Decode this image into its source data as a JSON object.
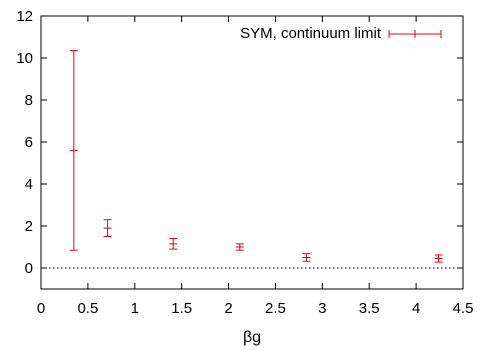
{
  "chart_data": {
    "type": "scatter",
    "xlabel": "βg",
    "ylabel": "",
    "xlim": [
      0,
      4.5
    ],
    "ylim": [
      -1,
      12
    ],
    "x_ticks": [
      "0",
      "0.5",
      "1",
      "1.5",
      "2",
      "2.5",
      "3",
      "3.5",
      "4",
      "4.5"
    ],
    "y_ticks": [
      "0",
      "2",
      "4",
      "6",
      "8",
      "10",
      "12"
    ],
    "reference_line_y": 0,
    "grid": false,
    "legend_position": "top-right",
    "series": [
      {
        "name": "SYM, continuum limit",
        "color": "#e8000b",
        "marker": "plus",
        "points": [
          {
            "x": 0.35,
            "y": 5.6,
            "ylow": 0.85,
            "yhigh": 10.35
          },
          {
            "x": 0.71,
            "y": 1.9,
            "ylow": 1.5,
            "yhigh": 2.3
          },
          {
            "x": 1.41,
            "y": 1.15,
            "ylow": 0.9,
            "yhigh": 1.4
          },
          {
            "x": 2.12,
            "y": 1.0,
            "ylow": 0.85,
            "yhigh": 1.15
          },
          {
            "x": 2.83,
            "y": 0.5,
            "ylow": 0.32,
            "yhigh": 0.68
          },
          {
            "x": 4.24,
            "y": 0.45,
            "ylow": 0.28,
            "yhigh": 0.62
          }
        ]
      }
    ]
  }
}
